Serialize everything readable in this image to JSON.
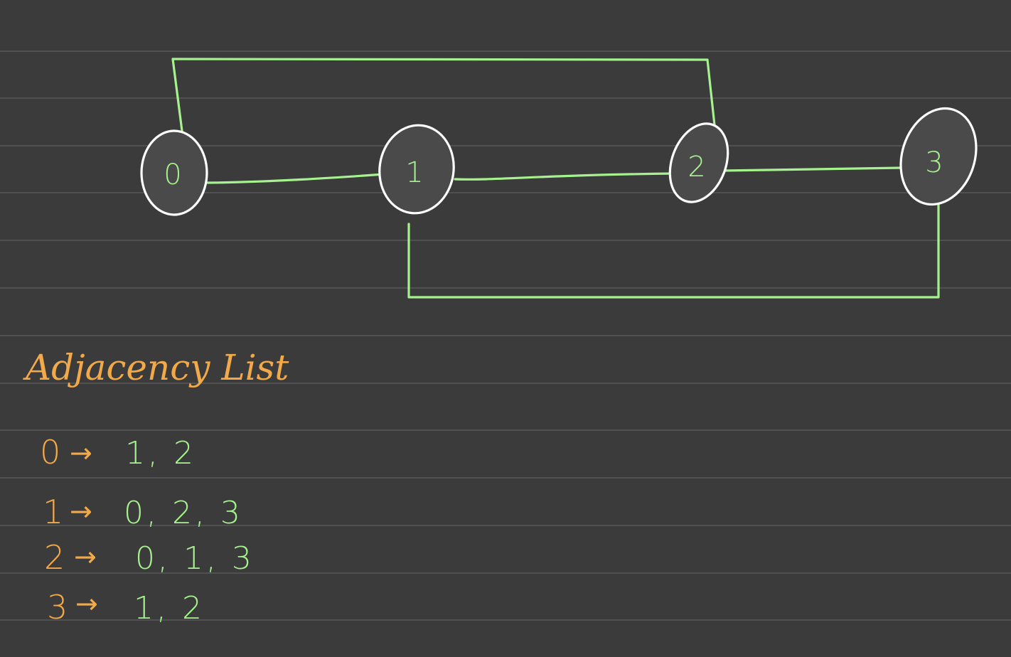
{
  "colors": {
    "background": "#3b3b3b",
    "ruled_line": "#5e5e5e",
    "node_outline": "#ffffff",
    "node_fill": "#4a4a4a",
    "edge": "#a6f28f",
    "node_label": "#a6f28f",
    "list_text": "#f2a94a",
    "list_neighbors": "#a6f28f"
  },
  "graph": {
    "nodes": [
      {
        "id": "0",
        "label": "0"
      },
      {
        "id": "1",
        "label": "1"
      },
      {
        "id": "2",
        "label": "2"
      },
      {
        "id": "3",
        "label": "3"
      }
    ],
    "edges": [
      {
        "from": "0",
        "to": "1"
      },
      {
        "from": "1",
        "to": "2"
      },
      {
        "from": "2",
        "to": "3"
      },
      {
        "from": "0",
        "to": "2"
      },
      {
        "from": "1",
        "to": "3"
      }
    ]
  },
  "adjacency_list": {
    "heading": "Adjacency List",
    "rows": [
      {
        "vertex": "0",
        "arrow": "→",
        "neighbors": "1, 2"
      },
      {
        "vertex": "1",
        "arrow": "→",
        "neighbors": "0, 2, 3"
      },
      {
        "vertex": "2",
        "arrow": "→",
        "neighbors": "0, 1, 3"
      },
      {
        "vertex": "3",
        "arrow": "→",
        "neighbors": "1, 2"
      }
    ]
  }
}
